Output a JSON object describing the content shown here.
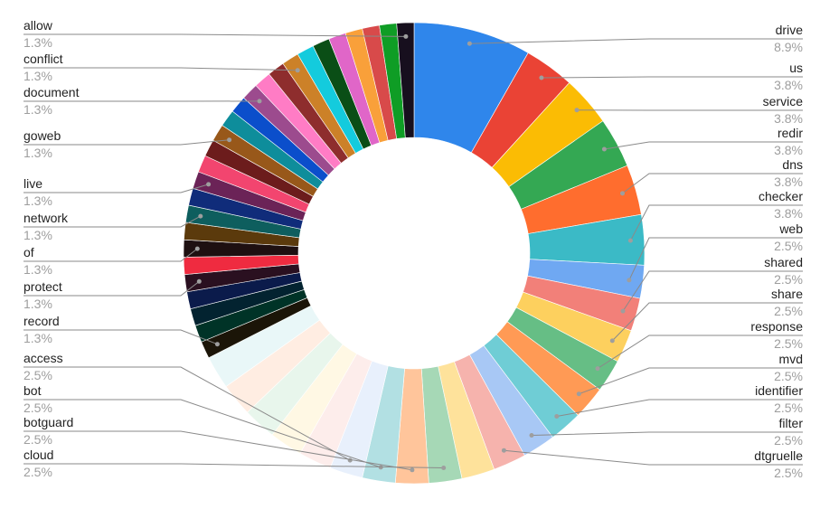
{
  "chart_data": {
    "type": "pie",
    "style": "donut",
    "legend": "labels-with-leader-lines",
    "slices": [
      {
        "label": "drive",
        "value": 8.9,
        "pct_text": "8.9%",
        "color": "#2F86EB"
      },
      {
        "label": "us",
        "value": 3.8,
        "pct_text": "3.8%",
        "color": "#EA4335"
      },
      {
        "label": "service",
        "value": 3.8,
        "pct_text": "3.8%",
        "color": "#FBBC04"
      },
      {
        "label": "redir",
        "value": 3.8,
        "pct_text": "3.8%",
        "color": "#34A853"
      },
      {
        "label": "dns",
        "value": 3.8,
        "pct_text": "3.8%",
        "color": "#FF6D2E"
      },
      {
        "label": "checker",
        "value": 3.8,
        "pct_text": "3.8%",
        "color": "#3BBAC6"
      },
      {
        "label": "web",
        "value": 2.5,
        "pct_text": "2.5%",
        "color": "#6FA8F2"
      },
      {
        "label": "shared",
        "value": 2.5,
        "pct_text": "2.5%",
        "color": "#F28079"
      },
      {
        "label": "share",
        "value": 2.5,
        "pct_text": "2.5%",
        "color": "#FDD05E"
      },
      {
        "label": "response",
        "value": 2.5,
        "pct_text": "2.5%",
        "color": "#66BE85"
      },
      {
        "label": "mvd",
        "value": 2.5,
        "pct_text": "2.5%",
        "color": "#FF9A55"
      },
      {
        "label": "identifier",
        "value": 2.5,
        "pct_text": "2.5%",
        "color": "#6FCDD5"
      },
      {
        "label": "filter",
        "value": 2.5,
        "pct_text": "2.5%",
        "color": "#A8C8F5"
      },
      {
        "label": "dtgruelle",
        "value": 2.5,
        "pct_text": "2.5%",
        "color": "#F6B3AD"
      },
      {
        "label": "",
        "value": 2.5,
        "pct_text": "",
        "color": "#FEE29B"
      },
      {
        "label": "cloud",
        "value": 2.5,
        "pct_text": "2.5%",
        "color": "#A6D8B6"
      },
      {
        "label": "botguard",
        "value": 2.5,
        "pct_text": "2.5%",
        "color": "#FFC59B"
      },
      {
        "label": "bot",
        "value": 2.5,
        "pct_text": "2.5%",
        "color": "#B2E0E3"
      },
      {
        "label": "access",
        "value": 2.5,
        "pct_text": "2.5%",
        "color": "#E8F0FC"
      },
      {
        "label": "",
        "value": 2.5,
        "pct_text": "",
        "color": "#FDEDEB"
      },
      {
        "label": "",
        "value": 2.5,
        "pct_text": "",
        "color": "#FFF8E4"
      },
      {
        "label": "",
        "value": 2.5,
        "pct_text": "",
        "color": "#E8F6EC"
      },
      {
        "label": "",
        "value": 2.5,
        "pct_text": "",
        "color": "#FFEDE2"
      },
      {
        "label": "",
        "value": 2.5,
        "pct_text": "",
        "color": "#E9F7F8"
      },
      {
        "label": "record",
        "value": 1.3,
        "pct_text": "1.3%",
        "color": "#1B1508"
      },
      {
        "label": "",
        "value": 1.3,
        "pct_text": "",
        "color": "#003327"
      },
      {
        "label": "",
        "value": 1.3,
        "pct_text": "",
        "color": "#032330"
      },
      {
        "label": "",
        "value": 1.3,
        "pct_text": "",
        "color": "#0B1B4B"
      },
      {
        "label": "protect",
        "value": 1.3,
        "pct_text": "1.3%",
        "color": "#2A1020"
      },
      {
        "label": "",
        "value": 1.3,
        "pct_text": "",
        "color": "#EF2B40"
      },
      {
        "label": "of",
        "value": 1.3,
        "pct_text": "1.3%",
        "color": "#1E1011"
      },
      {
        "label": "",
        "value": 1.3,
        "pct_text": "",
        "color": "#5B3A0C"
      },
      {
        "label": "network",
        "value": 1.3,
        "pct_text": "1.3%",
        "color": "#0E5E5E"
      },
      {
        "label": "",
        "value": 1.3,
        "pct_text": "",
        "color": "#102C7A"
      },
      {
        "label": "live",
        "value": 1.3,
        "pct_text": "1.3%",
        "color": "#6B2357"
      },
      {
        "label": "",
        "value": 1.3,
        "pct_text": "",
        "color": "#F2456F"
      },
      {
        "label": "",
        "value": 1.3,
        "pct_text": "",
        "color": "#6C1C1C"
      },
      {
        "label": "goweb",
        "value": 1.3,
        "pct_text": "1.3%",
        "color": "#98581A"
      },
      {
        "label": "",
        "value": 1.3,
        "pct_text": "",
        "color": "#0E8D9B"
      },
      {
        "label": "",
        "value": 1.3,
        "pct_text": "",
        "color": "#0B4ECB"
      },
      {
        "label": "document",
        "value": 1.3,
        "pct_text": "1.3%",
        "color": "#9C4B8E"
      },
      {
        "label": "",
        "value": 1.3,
        "pct_text": "",
        "color": "#FF7CC5"
      },
      {
        "label": "",
        "value": 1.3,
        "pct_text": "",
        "color": "#8E2D2D"
      },
      {
        "label": "conflict",
        "value": 1.3,
        "pct_text": "1.3%",
        "color": "#CC8128"
      },
      {
        "label": "",
        "value": 1.3,
        "pct_text": "",
        "color": "#14CBDD"
      },
      {
        "label": "",
        "value": 1.3,
        "pct_text": "",
        "color": "#0A4E16"
      },
      {
        "label": "",
        "value": 1.3,
        "pct_text": "",
        "color": "#E066C8"
      },
      {
        "label": "",
        "value": 1.3,
        "pct_text": "",
        "color": "#F9A03A"
      },
      {
        "label": "",
        "value": 1.3,
        "pct_text": "",
        "color": "#D84A4A"
      },
      {
        "label": "",
        "value": 1.3,
        "pct_text": "",
        "color": "#0F9D25"
      },
      {
        "label": "allow",
        "value": 1.3,
        "pct_text": "1.3%",
        "color": "#170F1E"
      }
    ]
  }
}
